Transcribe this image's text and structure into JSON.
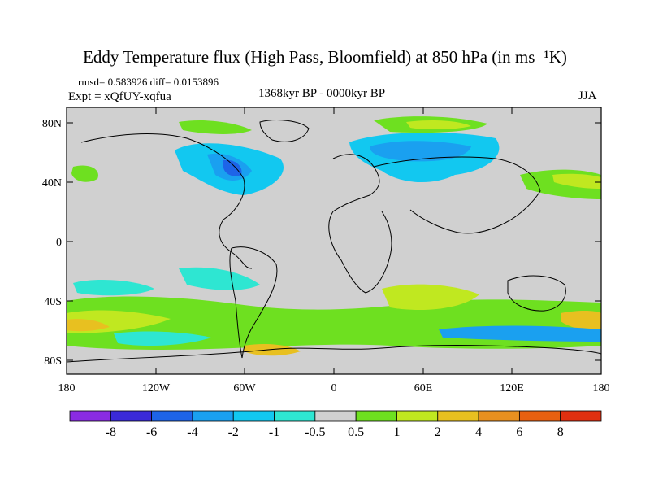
{
  "title": "Eddy Temperature flux (High Pass, Bloomfield) at 850 hPa (in ms⁻¹K)",
  "stats": "rmsd= 0.583926 diff= 0.0153896",
  "experiment": "Expt = xQfUY-xqfua",
  "period": "1368kyr BP - 0000kyr BP",
  "season": "JJA",
  "lat_labels": [
    "80N",
    "40N",
    "0",
    "40S",
    "80S"
  ],
  "lon_labels": [
    "180",
    "120W",
    "60W",
    "0",
    "60E",
    "120E",
    "180"
  ],
  "colorbar": {
    "labels": [
      "-8",
      "-6",
      "-4",
      "-2",
      "-1",
      "-0.5",
      "0.5",
      "1",
      "2",
      "4",
      "6",
      "8"
    ],
    "colors": [
      "#8a2be2",
      "#3a2ad8",
      "#1e64e8",
      "#1aa0f0",
      "#12c8f0",
      "#2ee6d2",
      "#d0d0d0",
      "#6ee020",
      "#c0e820",
      "#e8c020",
      "#e89020",
      "#e86010",
      "#e03010"
    ]
  },
  "colors": {
    "background": "#d0d0d0",
    "coastline": "#000000"
  }
}
